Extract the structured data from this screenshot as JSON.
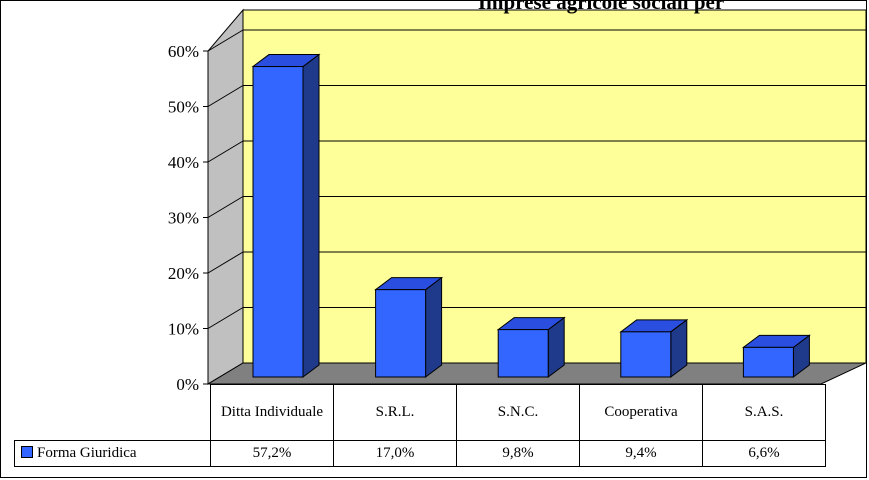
{
  "chart_data": {
    "type": "bar",
    "title": "Imprese agricole sociali per",
    "categories": [
      "Ditta Individuale",
      "S.R.L.",
      "S.N.C.",
      "Cooperativa",
      "S.A.S."
    ],
    "series": [
      {
        "name": "Forma Giuridica",
        "values": [
          57.2,
          17.0,
          9.8,
          9.4,
          6.6
        ],
        "color": "#3366ff"
      }
    ],
    "value_labels": [
      "57,2%",
      "17,0%",
      "9,8%",
      "9,4%",
      "6,6%"
    ],
    "ylim": [
      0,
      60
    ],
    "y_ticks": [
      {
        "value": 0,
        "label": "0%"
      },
      {
        "value": 10,
        "label": "10%"
      },
      {
        "value": 20,
        "label": "20%"
      },
      {
        "value": 30,
        "label": "30%"
      },
      {
        "value": 40,
        "label": "40%"
      },
      {
        "value": 50,
        "label": "50%"
      },
      {
        "value": 60,
        "label": "60%"
      }
    ],
    "grid": true,
    "legend": "data-table",
    "plot_background": "#ffff99",
    "floor_color": "#808080"
  }
}
